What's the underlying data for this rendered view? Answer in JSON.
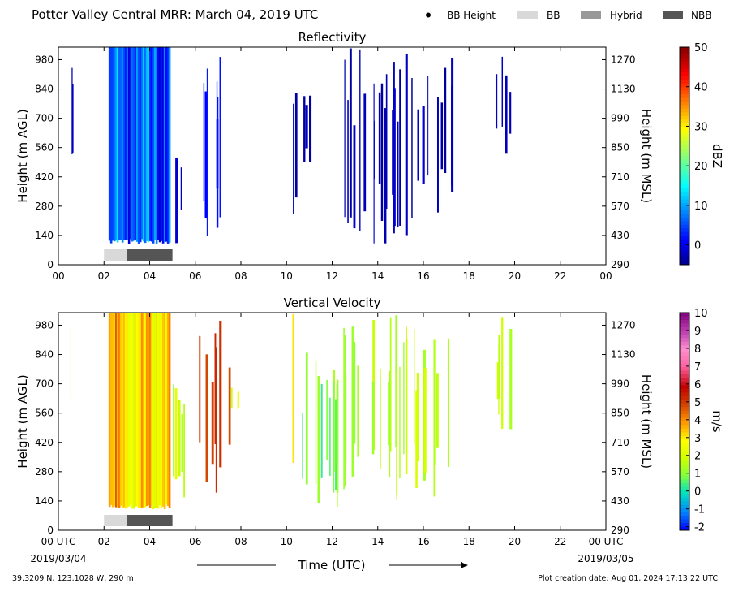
{
  "header": {
    "title": "Potter Valley Central MRR:  March 04, 2019 UTC",
    "legend": [
      {
        "label": "BB Height",
        "kind": "dot",
        "color": "#000000"
      },
      {
        "label": "BB",
        "kind": "box",
        "color": "#d9d9d9"
      },
      {
        "label": "Hybrid",
        "kind": "box",
        "color": "#999999"
      },
      {
        "label": "NBB",
        "kind": "box",
        "color": "#555555"
      }
    ]
  },
  "footer": {
    "location": "39.3209 N, 123.1028 W, 290 m",
    "creation": "Plot creation date: Aug 01, 2024 17:13:22 UTC",
    "xlabel": "Time (UTC)",
    "date_start": "2019/03/04",
    "date_end": "2019/03/05"
  },
  "chart_data": [
    {
      "type": "heatmap",
      "title": "Reflectivity",
      "ylabel_left": "Height (m AGL)",
      "ylabel_right": "Height (m MSL)",
      "x_ticks": [
        "00",
        "02",
        "04",
        "06",
        "08",
        "10",
        "12",
        "14",
        "16",
        "18",
        "20",
        "22",
        "00"
      ],
      "xlim": [
        0,
        24
      ],
      "y_ticks_left": [
        0,
        140,
        280,
        420,
        560,
        700,
        840,
        980
      ],
      "y_ticks_right": [
        290,
        430,
        570,
        710,
        850,
        990,
        1130,
        1270
      ],
      "ylim": [
        0,
        1040
      ],
      "colorbar": {
        "label": "dBZ",
        "ticks": [
          0,
          10,
          20,
          30,
          40,
          50
        ],
        "range": [
          -5,
          50
        ],
        "scale": "jet"
      },
      "bright_band": [
        {
          "start": 2.0,
          "end": 3.0,
          "type": "BB"
        },
        {
          "start": 3.0,
          "end": 5.0,
          "type": "NBB"
        }
      ],
      "echoes": [
        {
          "start": 0.3,
          "end": 0.8,
          "bottom": 480,
          "top": 1040,
          "value": -3,
          "style": "streaks"
        },
        {
          "start": 2.2,
          "end": 4.9,
          "bottom": 100,
          "top": 1040,
          "value": 6,
          "style": "band"
        },
        {
          "start": 4.9,
          "end": 5.4,
          "bottom": 100,
          "top": 700,
          "value": -2,
          "style": "streaks"
        },
        {
          "start": 6.0,
          "end": 7.5,
          "bottom": 100,
          "top": 1040,
          "value": 2,
          "style": "streaks"
        },
        {
          "start": 10.2,
          "end": 10.4,
          "bottom": 100,
          "top": 1040,
          "value": -3,
          "style": "streaks"
        },
        {
          "start": 10.4,
          "end": 11.0,
          "bottom": 400,
          "top": 880,
          "value": -3,
          "style": "streaks"
        },
        {
          "start": 12.4,
          "end": 14.6,
          "bottom": 100,
          "top": 1040,
          "value": -3,
          "style": "streaks"
        },
        {
          "start": 14.6,
          "end": 16.4,
          "bottom": 100,
          "top": 1040,
          "value": -3,
          "style": "streaks"
        },
        {
          "start": 16.4,
          "end": 17.3,
          "bottom": 220,
          "top": 1040,
          "value": -3,
          "style": "streaks"
        },
        {
          "start": 19.1,
          "end": 19.8,
          "bottom": 480,
          "top": 1040,
          "value": -3,
          "style": "streaks"
        }
      ]
    },
    {
      "type": "heatmap",
      "title": "Vertical Velocity",
      "ylabel_left": "Height (m AGL)",
      "ylabel_right": "Height (m MSL)",
      "x_ticks": [
        "00 UTC",
        "02",
        "04",
        "06",
        "08",
        "10",
        "12",
        "14",
        "16",
        "18",
        "20",
        "22",
        "00 UTC"
      ],
      "xlim": [
        0,
        24
      ],
      "y_ticks_left": [
        0,
        140,
        280,
        420,
        560,
        700,
        840,
        980
      ],
      "y_ticks_right": [
        290,
        430,
        570,
        710,
        850,
        990,
        1130,
        1270
      ],
      "ylim": [
        0,
        1040
      ],
      "colorbar": {
        "label": "m/s",
        "ticks": [
          -2,
          -1,
          0,
          1,
          2,
          3,
          4,
          5,
          6,
          7,
          8,
          9,
          10
        ],
        "range": [
          -2.2,
          10
        ],
        "scale": "velocity"
      },
      "bright_band": [
        {
          "start": 2.0,
          "end": 3.0,
          "type": "BB"
        },
        {
          "start": 3.0,
          "end": 5.0,
          "type": "NBB"
        }
      ],
      "echoes": [
        {
          "start": 0.3,
          "end": 0.8,
          "bottom": 480,
          "top": 1040,
          "value": 2.0,
          "style": "streaks"
        },
        {
          "start": 2.2,
          "end": 4.9,
          "bottom": 100,
          "top": 1040,
          "value": 3.0,
          "style": "band"
        },
        {
          "start": 4.9,
          "end": 5.5,
          "bottom": 100,
          "top": 700,
          "value": 1.6,
          "style": "streaks"
        },
        {
          "start": 6.1,
          "end": 7.5,
          "bottom": 100,
          "top": 1040,
          "value": 4.8,
          "style": "streaks"
        },
        {
          "start": 7.5,
          "end": 8.0,
          "bottom": 560,
          "top": 720,
          "value": 2.0,
          "style": "streaks"
        },
        {
          "start": 10.2,
          "end": 10.4,
          "bottom": 100,
          "top": 1040,
          "value": 3.0,
          "style": "streaks"
        },
        {
          "start": 10.4,
          "end": 12.3,
          "bottom": 100,
          "top": 860,
          "value": 0.8,
          "style": "streaks"
        },
        {
          "start": 12.4,
          "end": 14.6,
          "bottom": 100,
          "top": 1040,
          "value": 1.2,
          "style": "streaks"
        },
        {
          "start": 14.6,
          "end": 16.4,
          "bottom": 100,
          "top": 1040,
          "value": 1.3,
          "style": "streaks"
        },
        {
          "start": 16.4,
          "end": 17.3,
          "bottom": 160,
          "top": 1040,
          "value": 1.5,
          "style": "streaks"
        },
        {
          "start": 19.1,
          "end": 19.8,
          "bottom": 420,
          "top": 1040,
          "value": 1.5,
          "style": "streaks"
        }
      ]
    }
  ]
}
